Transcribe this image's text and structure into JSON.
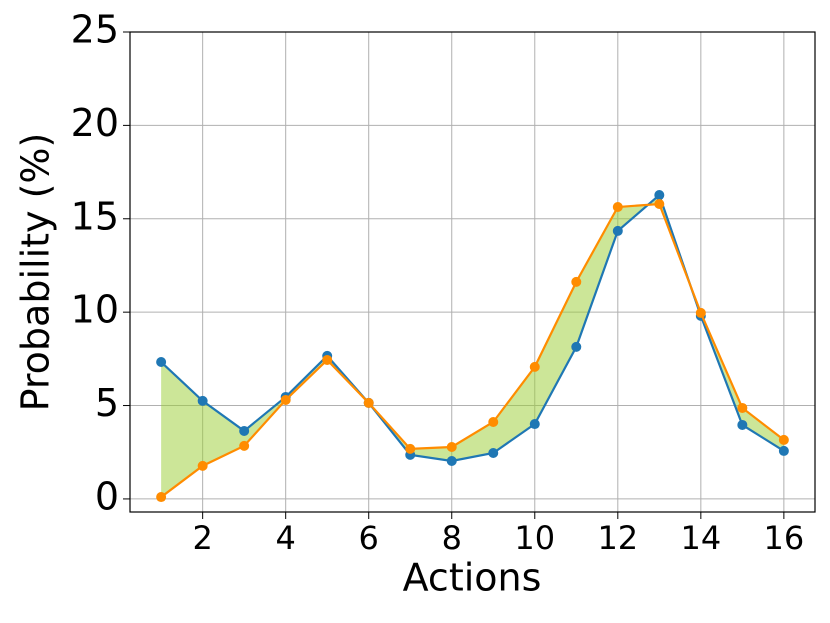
{
  "chart_data": {
    "type": "line",
    "xlabel": "Actions",
    "ylabel": "Probability (%)",
    "x": [
      1,
      2,
      3,
      4,
      5,
      6,
      7,
      8,
      9,
      10,
      11,
      12,
      13,
      14,
      15,
      16
    ],
    "series": [
      {
        "color": "#1f77b4",
        "values": [
          7.33,
          5.25,
          3.64,
          5.46,
          7.66,
          5.14,
          2.36,
          2.03,
          2.46,
          4.01,
          8.14,
          14.35,
          16.27,
          9.8,
          3.96,
          2.57
        ]
      },
      {
        "color": "#ff8c00",
        "values": [
          0.1,
          1.77,
          2.84,
          5.3,
          7.44,
          5.14,
          2.68,
          2.78,
          4.12,
          7.07,
          11.62,
          15.63,
          15.79,
          9.96,
          4.87,
          3.16
        ]
      }
    ],
    "fill_between_color": "#9acd32",
    "xlim": [
      0.25,
      16.75
    ],
    "xticks": [
      2,
      4,
      6,
      8,
      10,
      12,
      14,
      16
    ],
    "ylim": [
      -0.7,
      25
    ],
    "yticks": [
      0,
      5,
      10,
      15,
      20,
      25
    ],
    "grid": true
  }
}
